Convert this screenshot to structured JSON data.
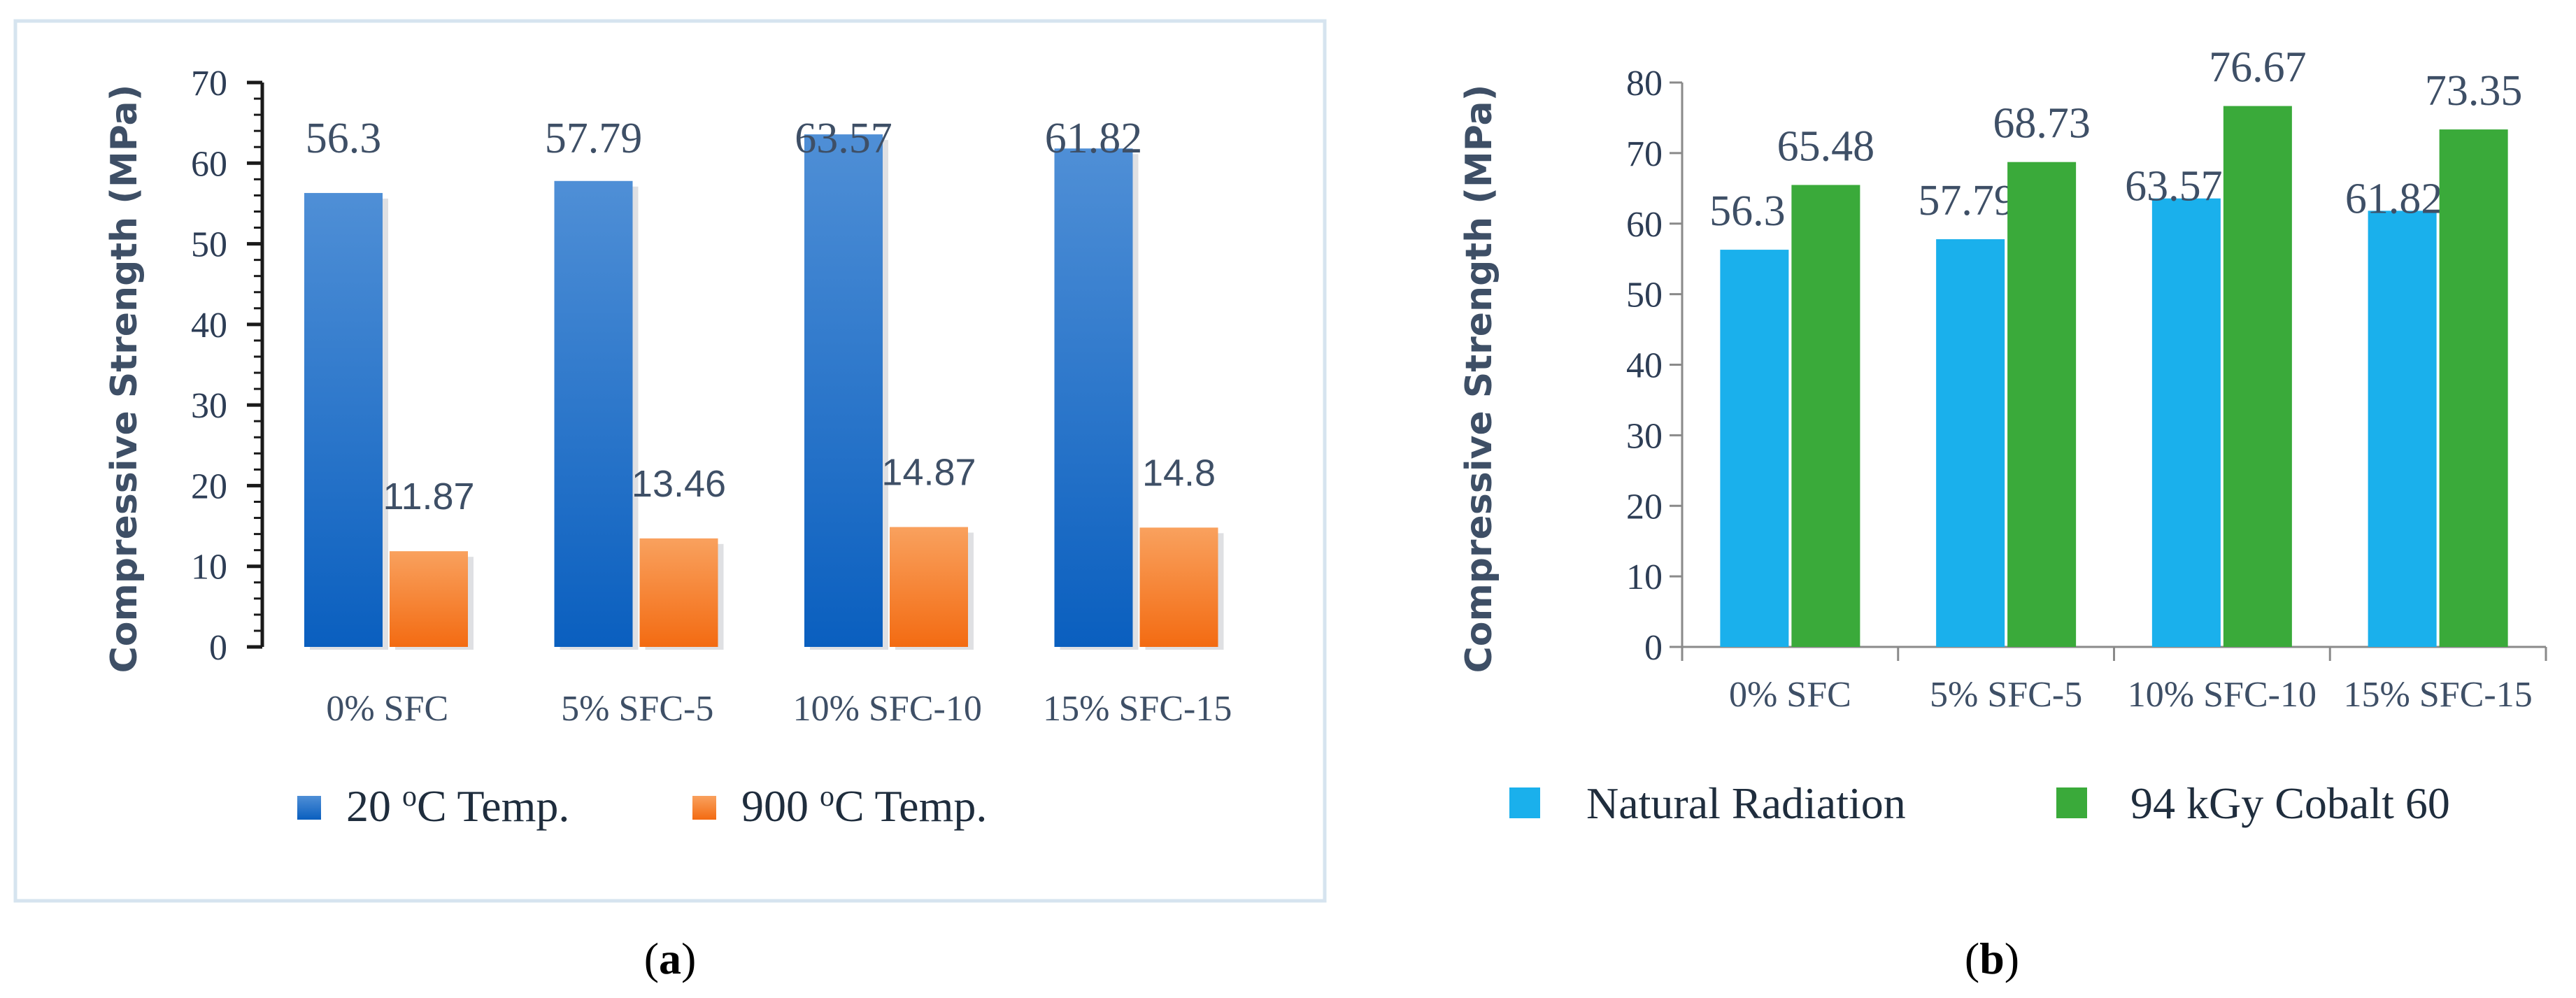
{
  "chart_data": [
    {
      "type": "bar",
      "panel": "a",
      "categories": [
        "0% SFC",
        "5% SFC-5",
        "10% SFC-10",
        "15% SFC-15"
      ],
      "series": [
        {
          "name": "20 oC Temp.",
          "values": [
            56.3,
            57.79,
            63.57,
            61.82
          ],
          "labels": [
            "56.3",
            "57.79",
            "63.57",
            "61.82"
          ],
          "color": "#1a6fc4"
        },
        {
          "name": "900 oC Temp.",
          "values": [
            11.87,
            13.46,
            14.87,
            14.8
          ],
          "labels": [
            "11.87",
            "13.46",
            "14.87",
            "14.8"
          ],
          "color": "#f47d20"
        }
      ],
      "legend_parts": [
        [
          "20 ",
          "o",
          "C Temp."
        ],
        [
          "900 ",
          "o",
          "C Temp."
        ]
      ],
      "ylabel": "Compressive Strength (MPa)",
      "ylim": [
        0,
        70
      ],
      "yticks": [
        0,
        10,
        20,
        30,
        40,
        50,
        60,
        70
      ],
      "legend": "bottom"
    },
    {
      "type": "bar",
      "panel": "b",
      "categories": [
        "0% SFC",
        "5% SFC-5",
        "10% SFC-10",
        "15% SFC-15"
      ],
      "series": [
        {
          "name": "Natural Radiation",
          "values": [
            56.3,
            57.79,
            63.57,
            61.82
          ],
          "labels": [
            "56.3",
            "57.79",
            "63.57",
            "61.82"
          ],
          "color": "#1ab0ec"
        },
        {
          "name": "94 kGy Cobalt 60",
          "values": [
            65.48,
            68.73,
            76.67,
            73.35
          ],
          "labels": [
            "65.48",
            "68.73",
            "76.67",
            "73.35"
          ],
          "color": "#3aaa3a"
        }
      ],
      "ylabel": "Compressive Strength (MPa)",
      "ylim": [
        0,
        80
      ],
      "yticks": [
        0,
        10,
        20,
        30,
        40,
        50,
        60,
        70,
        80
      ],
      "legend": "bottom"
    }
  ],
  "captions": [
    {
      "open": "(",
      "letter": "a",
      "close": ")"
    },
    {
      "open": "(",
      "letter": "b",
      "close": ")"
    }
  ]
}
